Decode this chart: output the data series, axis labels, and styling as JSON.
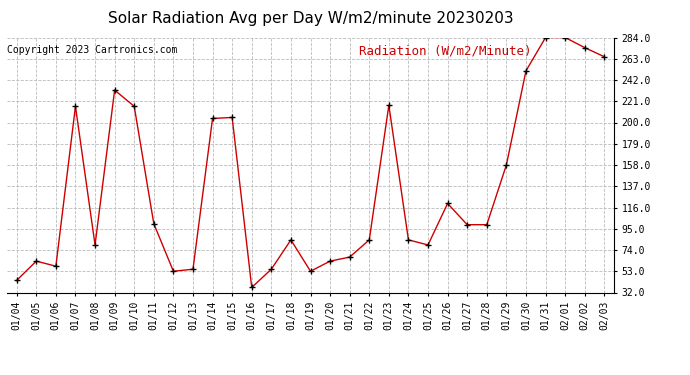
{
  "title": "Solar Radiation Avg per Day W/m2/minute 20230203",
  "copyright": "Copyright 2023 Cartronics.com",
  "legend_label": "Radiation (W/m2/Minute)",
  "dates": [
    "01/04",
    "01/05",
    "01/06",
    "01/07",
    "01/08",
    "01/09",
    "01/10",
    "01/11",
    "01/12",
    "01/13",
    "01/14",
    "01/15",
    "01/16",
    "01/17",
    "01/18",
    "01/19",
    "01/20",
    "01/21",
    "01/22",
    "01/23",
    "01/24",
    "01/25",
    "01/26",
    "01/27",
    "01/28",
    "01/29",
    "01/30",
    "01/31",
    "02/01",
    "02/02",
    "02/03"
  ],
  "values": [
    44,
    63,
    58,
    216,
    79,
    232,
    216,
    100,
    53,
    55,
    204,
    205,
    37,
    55,
    84,
    53,
    63,
    67,
    84,
    217,
    84,
    79,
    120,
    99,
    99,
    158,
    251,
    284,
    284,
    274,
    265
  ],
  "line_color": "#cc0000",
  "marker_color": "#000000",
  "background_color": "#ffffff",
  "grid_color": "#bbbbbb",
  "ylim_min": 32.0,
  "ylim_max": 284.0,
  "yticks": [
    32.0,
    53.0,
    74.0,
    95.0,
    116.0,
    137.0,
    158.0,
    179.0,
    200.0,
    221.0,
    242.0,
    263.0,
    284.0
  ],
  "title_fontsize": 11,
  "copyright_fontsize": 7,
  "legend_fontsize": 9,
  "tick_fontsize": 7
}
